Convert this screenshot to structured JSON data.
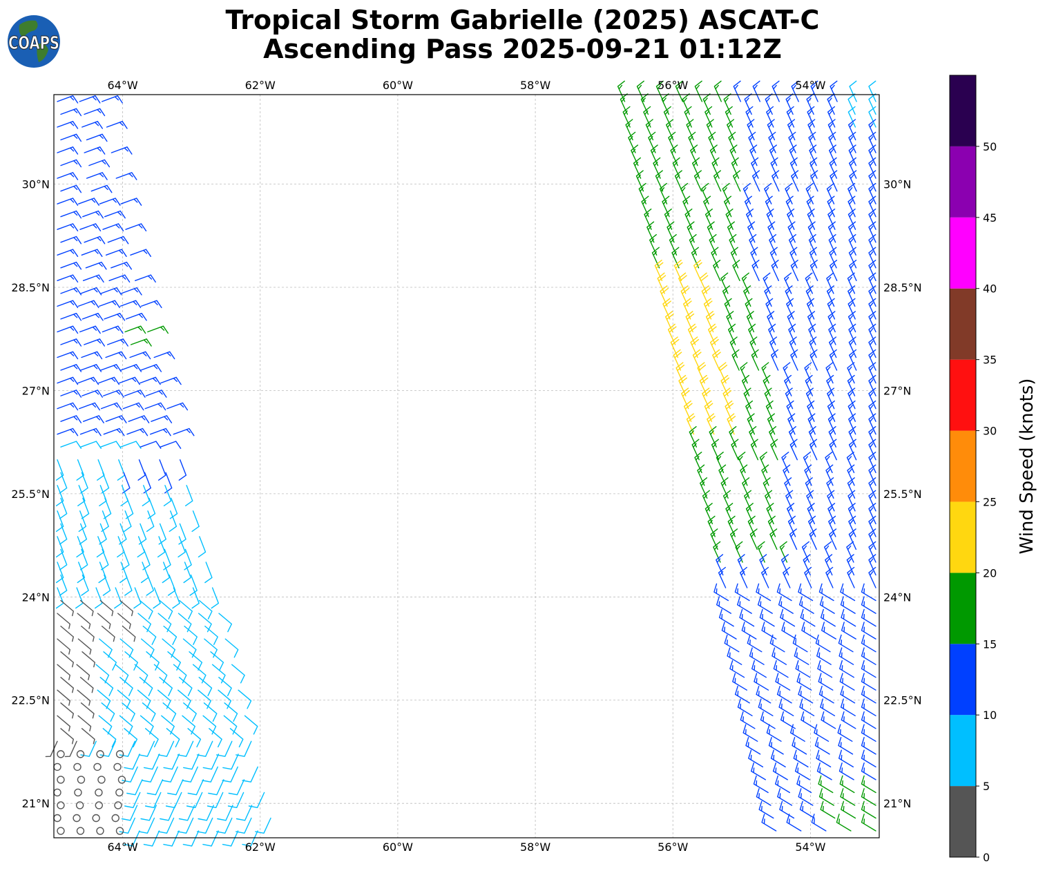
{
  "title": {
    "line1": "Tropical Storm Gabrielle (2025) ASCAT-C",
    "line2": "Ascending Pass 2025-09-21 01:12Z"
  },
  "logo": {
    "text": "COAPS",
    "icon": "globe-logo-icon"
  },
  "map": {
    "lon_range": [
      -65,
      -53
    ],
    "lat_range": [
      20.5,
      31.3
    ],
    "lon_ticks": [
      "64°W",
      "62°W",
      "60°W",
      "58°W",
      "56°W",
      "54°W"
    ],
    "lon_tick_values": [
      -64,
      -62,
      -60,
      -58,
      -56,
      -54
    ],
    "lat_ticks": [
      "30°N",
      "28.5°N",
      "27°N",
      "25.5°N",
      "24°N",
      "22.5°N",
      "21°N"
    ],
    "lat_tick_values": [
      30,
      28.5,
      27,
      25.5,
      24,
      22.5,
      21
    ],
    "grid": true,
    "symbol": "wind-barb"
  },
  "colorbar": {
    "label": "Wind Speed (knots)",
    "ticks": [
      "0",
      "5",
      "10",
      "15",
      "20",
      "25",
      "30",
      "35",
      "40",
      "45",
      "50"
    ],
    "bins": [
      {
        "min": 0,
        "max": 5,
        "color": "#555555"
      },
      {
        "min": 5,
        "max": 10,
        "color": "#00bfff"
      },
      {
        "min": 10,
        "max": 15,
        "color": "#0040ff"
      },
      {
        "min": 15,
        "max": 20,
        "color": "#009900"
      },
      {
        "min": 20,
        "max": 25,
        "color": "#ffd710"
      },
      {
        "min": 25,
        "max": 30,
        "color": "#ff8c0a"
      },
      {
        "min": 30,
        "max": 35,
        "color": "#ff1010"
      },
      {
        "min": 35,
        "max": 40,
        "color": "#813a28"
      },
      {
        "min": 40,
        "max": 45,
        "color": "#ff00ff"
      },
      {
        "min": 45,
        "max": 50,
        "color": "#8b00b0"
      },
      {
        "min": 50,
        "max": 55,
        "color": "#2a0050"
      }
    ]
  }
}
